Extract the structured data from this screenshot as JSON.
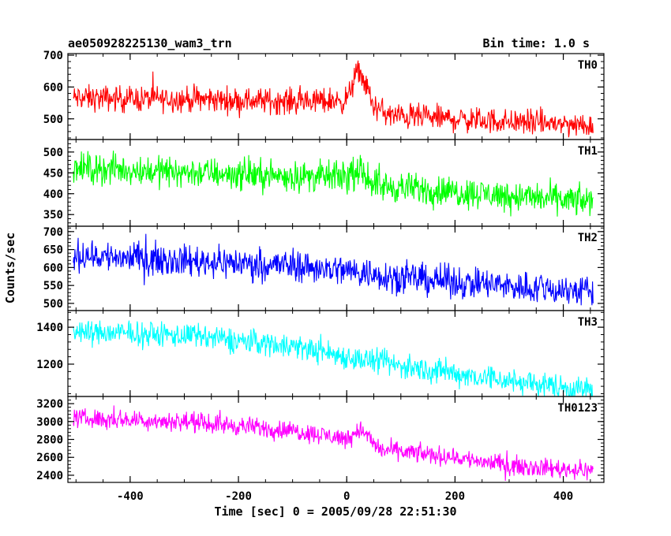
{
  "header": {
    "title": "ae050928225130_wam3_trn",
    "bin_time": "Bin time: 1.0 s"
  },
  "chart_data": {
    "type": "line",
    "xlabel": "Time [sec] 0 = 2005/09/28 22:51:30",
    "ylabel": "Counts/sec",
    "xlim": [
      -515,
      475
    ],
    "x_range": [
      -505,
      455
    ],
    "x_ticks": [
      -400,
      -200,
      0,
      200,
      400
    ],
    "panels": [
      {
        "name": "TH0",
        "color": "#ff0000",
        "ylim": [
          435,
          705
        ],
        "yticks": [
          500,
          600,
          700
        ],
        "trend": [
          [
            -505,
            565
          ],
          [
            -300,
            562
          ],
          [
            -100,
            555
          ],
          [
            0,
            558
          ],
          [
            15,
            630
          ],
          [
            25,
            650
          ],
          [
            50,
            540
          ],
          [
            80,
            510
          ],
          [
            250,
            495
          ],
          [
            455,
            480
          ]
        ],
        "noise": 42
      },
      {
        "name": "TH1",
        "color": "#00ff00",
        "ylim": [
          322,
          530
        ],
        "yticks": [
          350,
          400,
          450,
          500
        ],
        "trend": [
          [
            -505,
            462
          ],
          [
            -300,
            452
          ],
          [
            -100,
            442
          ],
          [
            0,
            440
          ],
          [
            25,
            452
          ],
          [
            60,
            418
          ],
          [
            200,
            405
          ],
          [
            455,
            380
          ]
        ],
        "noise": 38
      },
      {
        "name": "TH2",
        "color": "#0000ff",
        "ylim": [
          480,
          715
        ],
        "yticks": [
          500,
          550,
          600,
          650,
          700
        ],
        "trend": [
          [
            -505,
            635
          ],
          [
            -300,
            620
          ],
          [
            -100,
            605
          ],
          [
            0,
            592
          ],
          [
            100,
            572
          ],
          [
            300,
            548
          ],
          [
            455,
            533
          ]
        ],
        "noise": 46
      },
      {
        "name": "TH3",
        "color": "#00ffff",
        "ylim": [
          1025,
          1490
        ],
        "yticks": [
          1200,
          1400
        ],
        "trend": [
          [
            -505,
            1375
          ],
          [
            -300,
            1355
          ],
          [
            -100,
            1300
          ],
          [
            0,
            1240
          ],
          [
            100,
            1190
          ],
          [
            300,
            1110
          ],
          [
            455,
            1060
          ]
        ],
        "noise": 70
      },
      {
        "name": "TH0123",
        "color": "#ff00ff",
        "ylim": [
          2320,
          3280
        ],
        "yticks": [
          2400,
          2600,
          2800,
          3000,
          3200
        ],
        "trend": [
          [
            -505,
            3040
          ],
          [
            -300,
            3000
          ],
          [
            -100,
            2900
          ],
          [
            0,
            2810
          ],
          [
            25,
            2920
          ],
          [
            60,
            2690
          ],
          [
            200,
            2600
          ],
          [
            300,
            2510
          ],
          [
            455,
            2450
          ]
        ],
        "noise": 110
      }
    ]
  }
}
